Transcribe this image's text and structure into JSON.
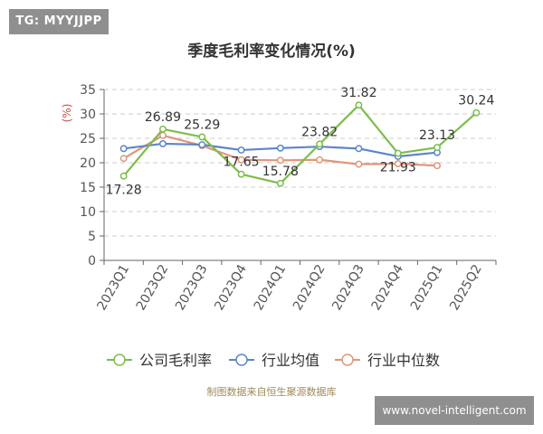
{
  "watermarks": {
    "top_left": "TG: MYYJJPP",
    "bottom_right": "www.novel-intelligent.com"
  },
  "chart_data": {
    "type": "line",
    "title": "季度毛利率变化情况(%)",
    "ylabel": "(%)",
    "xlabel": "",
    "ylim": [
      0,
      35
    ],
    "yticks": [
      0,
      5,
      10,
      15,
      20,
      25,
      30,
      35
    ],
    "categories": [
      "2023Q1",
      "2023Q2",
      "2023Q3",
      "2023Q4",
      "2024Q1",
      "2024Q2",
      "2024Q3",
      "2024Q4",
      "2025Q1",
      "2025Q2"
    ],
    "grid": true,
    "legend_position": "bottom",
    "series": [
      {
        "name": "公司毛利率",
        "color": "#7cbd4a",
        "values": [
          17.28,
          26.89,
          25.29,
          17.65,
          15.78,
          23.82,
          31.82,
          21.93,
          23.13,
          30.24
        ],
        "data_labels": [
          "17.28",
          "26.89",
          "25.29",
          "17.65",
          "15.78",
          "23.82",
          "31.82",
          "21.93",
          "23.13",
          "30.24"
        ]
      },
      {
        "name": "行业均值",
        "color": "#5b86c8",
        "values": [
          22.9,
          23.9,
          23.7,
          22.6,
          23.0,
          23.3,
          22.9,
          21.3,
          22.1,
          null
        ]
      },
      {
        "name": "行业中位数",
        "color": "#e0967a",
        "values": [
          20.9,
          25.6,
          23.5,
          20.6,
          20.5,
          20.6,
          19.7,
          19.8,
          19.4,
          null
        ]
      }
    ],
    "source": "制图数据来自恒生聚源数据库"
  }
}
